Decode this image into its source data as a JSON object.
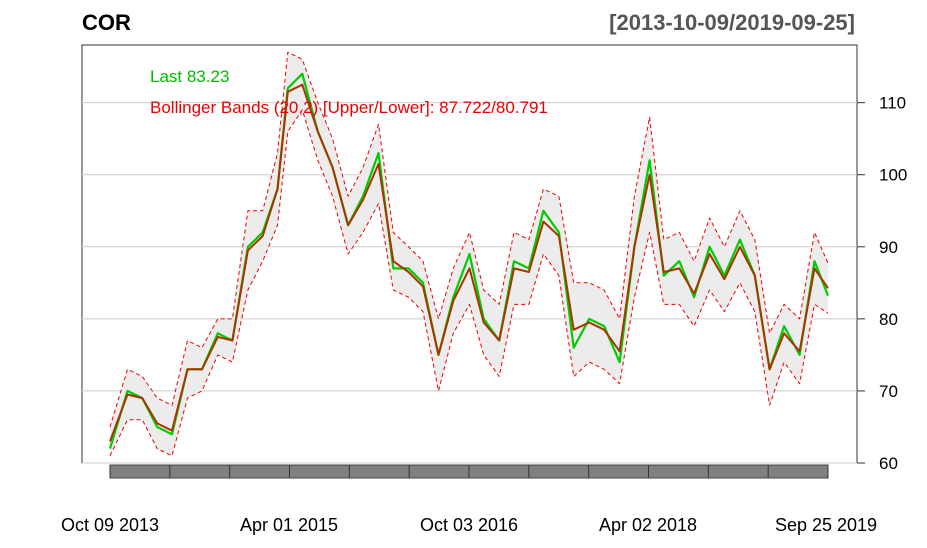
{
  "chart_data": {
    "type": "line",
    "title": "COR",
    "date_range": "[2013-10-09/2019-09-25]",
    "ylim": [
      60,
      118
    ],
    "y_ticks": [
      60,
      70,
      80,
      90,
      100,
      110
    ],
    "x_tick_labels": [
      "Oct 09 2013",
      "Apr 01 2015",
      "Oct 03 2016",
      "Apr 02 2018",
      "Sep 25 2019"
    ],
    "grid": true,
    "legend": {
      "last": "Last 83.23",
      "bbands": "Bollinger Bands (20,2) [Upper/Lower]: 87.722/80.791"
    },
    "x": [
      "2013-10-09",
      "2013-12-01",
      "2014-01-15",
      "2014-03-01",
      "2014-04-15",
      "2014-06-01",
      "2014-07-15",
      "2014-09-01",
      "2014-10-15",
      "2014-12-01",
      "2015-01-15",
      "2015-03-01",
      "2015-04-01",
      "2015-05-15",
      "2015-07-01",
      "2015-08-15",
      "2015-10-01",
      "2015-11-15",
      "2016-01-01",
      "2016-02-15",
      "2016-04-01",
      "2016-05-15",
      "2016-07-01",
      "2016-08-15",
      "2016-10-03",
      "2016-11-15",
      "2017-01-01",
      "2017-02-15",
      "2017-04-01",
      "2017-05-15",
      "2017-07-01",
      "2017-08-15",
      "2017-10-01",
      "2017-11-15",
      "2018-01-01",
      "2018-02-15",
      "2018-04-02",
      "2018-05-15",
      "2018-07-01",
      "2018-08-15",
      "2018-10-01",
      "2018-11-15",
      "2019-01-01",
      "2019-02-15",
      "2019-04-01",
      "2019-05-15",
      "2019-07-01",
      "2019-08-15",
      "2019-09-25"
    ],
    "series": [
      {
        "name": "Last",
        "color": "#00cc00",
        "values": [
          62,
          70,
          69,
          65,
          64,
          73,
          73,
          78,
          77,
          90,
          92,
          98,
          112,
          114,
          106,
          101,
          93,
          97,
          103,
          87,
          87,
          85,
          75,
          83,
          89,
          80,
          77,
          88,
          87,
          95,
          92,
          76,
          80,
          79,
          74,
          90,
          102,
          86,
          88,
          83,
          90,
          86,
          91,
          86,
          73,
          79,
          75,
          88,
          83.23
        ]
      },
      {
        "name": "Bollinger Upper",
        "color": "#ee0000",
        "values": [
          65,
          73,
          72,
          69,
          68,
          77,
          76,
          80,
          80,
          95,
          95,
          103,
          117,
          116,
          110,
          105,
          97,
          101,
          107,
          92,
          90,
          88,
          80,
          87,
          92,
          84,
          82,
          92,
          91,
          98,
          97,
          85,
          85,
          84,
          80,
          97,
          108,
          91,
          92,
          88,
          94,
          90,
          95,
          91,
          78,
          82,
          80,
          92,
          87.72
        ]
      },
      {
        "name": "Bollinger Lower",
        "color": "#ee0000",
        "values": [
          61,
          66,
          66,
          62,
          61,
          69,
          70,
          75,
          74,
          84,
          88,
          93,
          106,
          109,
          102,
          97,
          89,
          92,
          96,
          84,
          83,
          81,
          70,
          78,
          82,
          75,
          72,
          82,
          82,
          89,
          86,
          72,
          74,
          73,
          71,
          83,
          92,
          82,
          82,
          79,
          84,
          81,
          85,
          81,
          68,
          74,
          71,
          82,
          80.79
        ]
      },
      {
        "name": "Bollinger Middle",
        "color": "#aa3300",
        "values": [
          63,
          69.5,
          69,
          65.5,
          64.5,
          73,
          73,
          77.5,
          77,
          89.5,
          91.5,
          98,
          111.5,
          112.5,
          106,
          101,
          93,
          96.5,
          101.5,
          88,
          86.5,
          84.5,
          75,
          82.5,
          87,
          79.5,
          77,
          87,
          86.5,
          93.5,
          91.5,
          78.5,
          79.5,
          78.5,
          75.5,
          90,
          100,
          86.5,
          87,
          83.5,
          89,
          85.5,
          90,
          86,
          73,
          78,
          75.5,
          87,
          84.26
        ]
      }
    ]
  }
}
